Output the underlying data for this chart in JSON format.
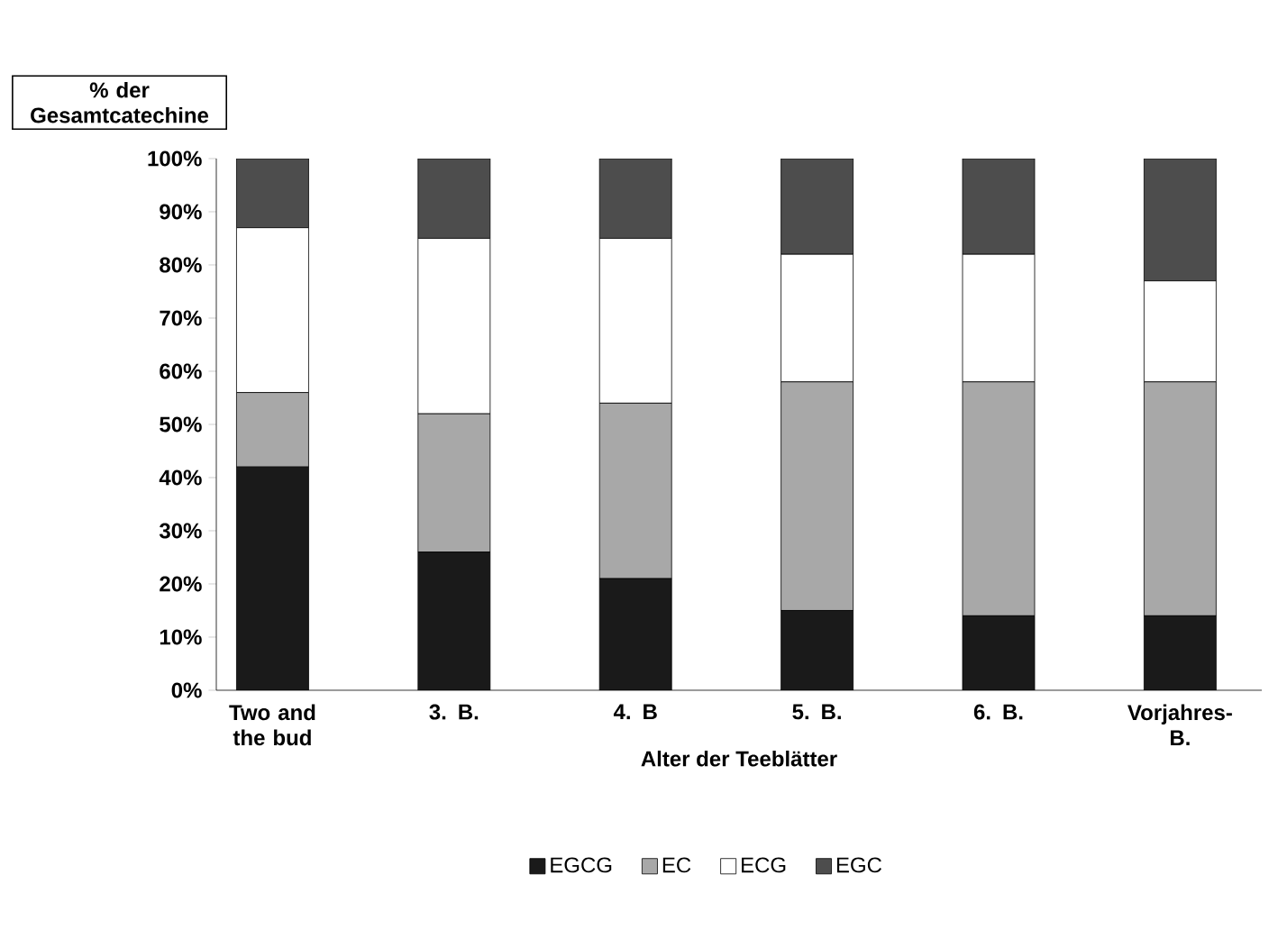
{
  "chart_data": {
    "type": "bar",
    "stacked": true,
    "xlabel": "Alter der Teeblätter",
    "ylabel": "% der Gesamtcatechine",
    "categories": [
      "Two and the bud",
      "3. B.",
      "4. B",
      "5. B.",
      "6. B.",
      "Vorjahres-B."
    ],
    "series": [
      {
        "name": "EGCG",
        "color": "#1a1a1a",
        "values": [
          42,
          26,
          21,
          15,
          14,
          14
        ]
      },
      {
        "name": "EC",
        "color": "#a8a8a8",
        "values": [
          14,
          26,
          33,
          43,
          44,
          44
        ]
      },
      {
        "name": "ECG",
        "color": "#ffffff",
        "values": [
          31,
          33,
          31,
          24,
          24,
          19
        ]
      },
      {
        "name": "EGC",
        "color": "#4d4d4d",
        "values": [
          13,
          15,
          15,
          18,
          18,
          23
        ]
      }
    ],
    "ylim": [
      0,
      100
    ],
    "yticks": [
      {
        "value": 0,
        "label": "0%"
      },
      {
        "value": 10,
        "label": "10%"
      },
      {
        "value": 20,
        "label": "20%"
      },
      {
        "value": 30,
        "label": "30%"
      },
      {
        "value": 40,
        "label": "40%"
      },
      {
        "value": 50,
        "label": "50%"
      },
      {
        "value": 60,
        "label": "60%"
      },
      {
        "value": 70,
        "label": "70%"
      },
      {
        "value": 80,
        "label": "80%"
      },
      {
        "value": 90,
        "label": "90%"
      },
      {
        "value": 100,
        "label": "100%"
      }
    ],
    "grid": false,
    "legend": "bottom"
  }
}
